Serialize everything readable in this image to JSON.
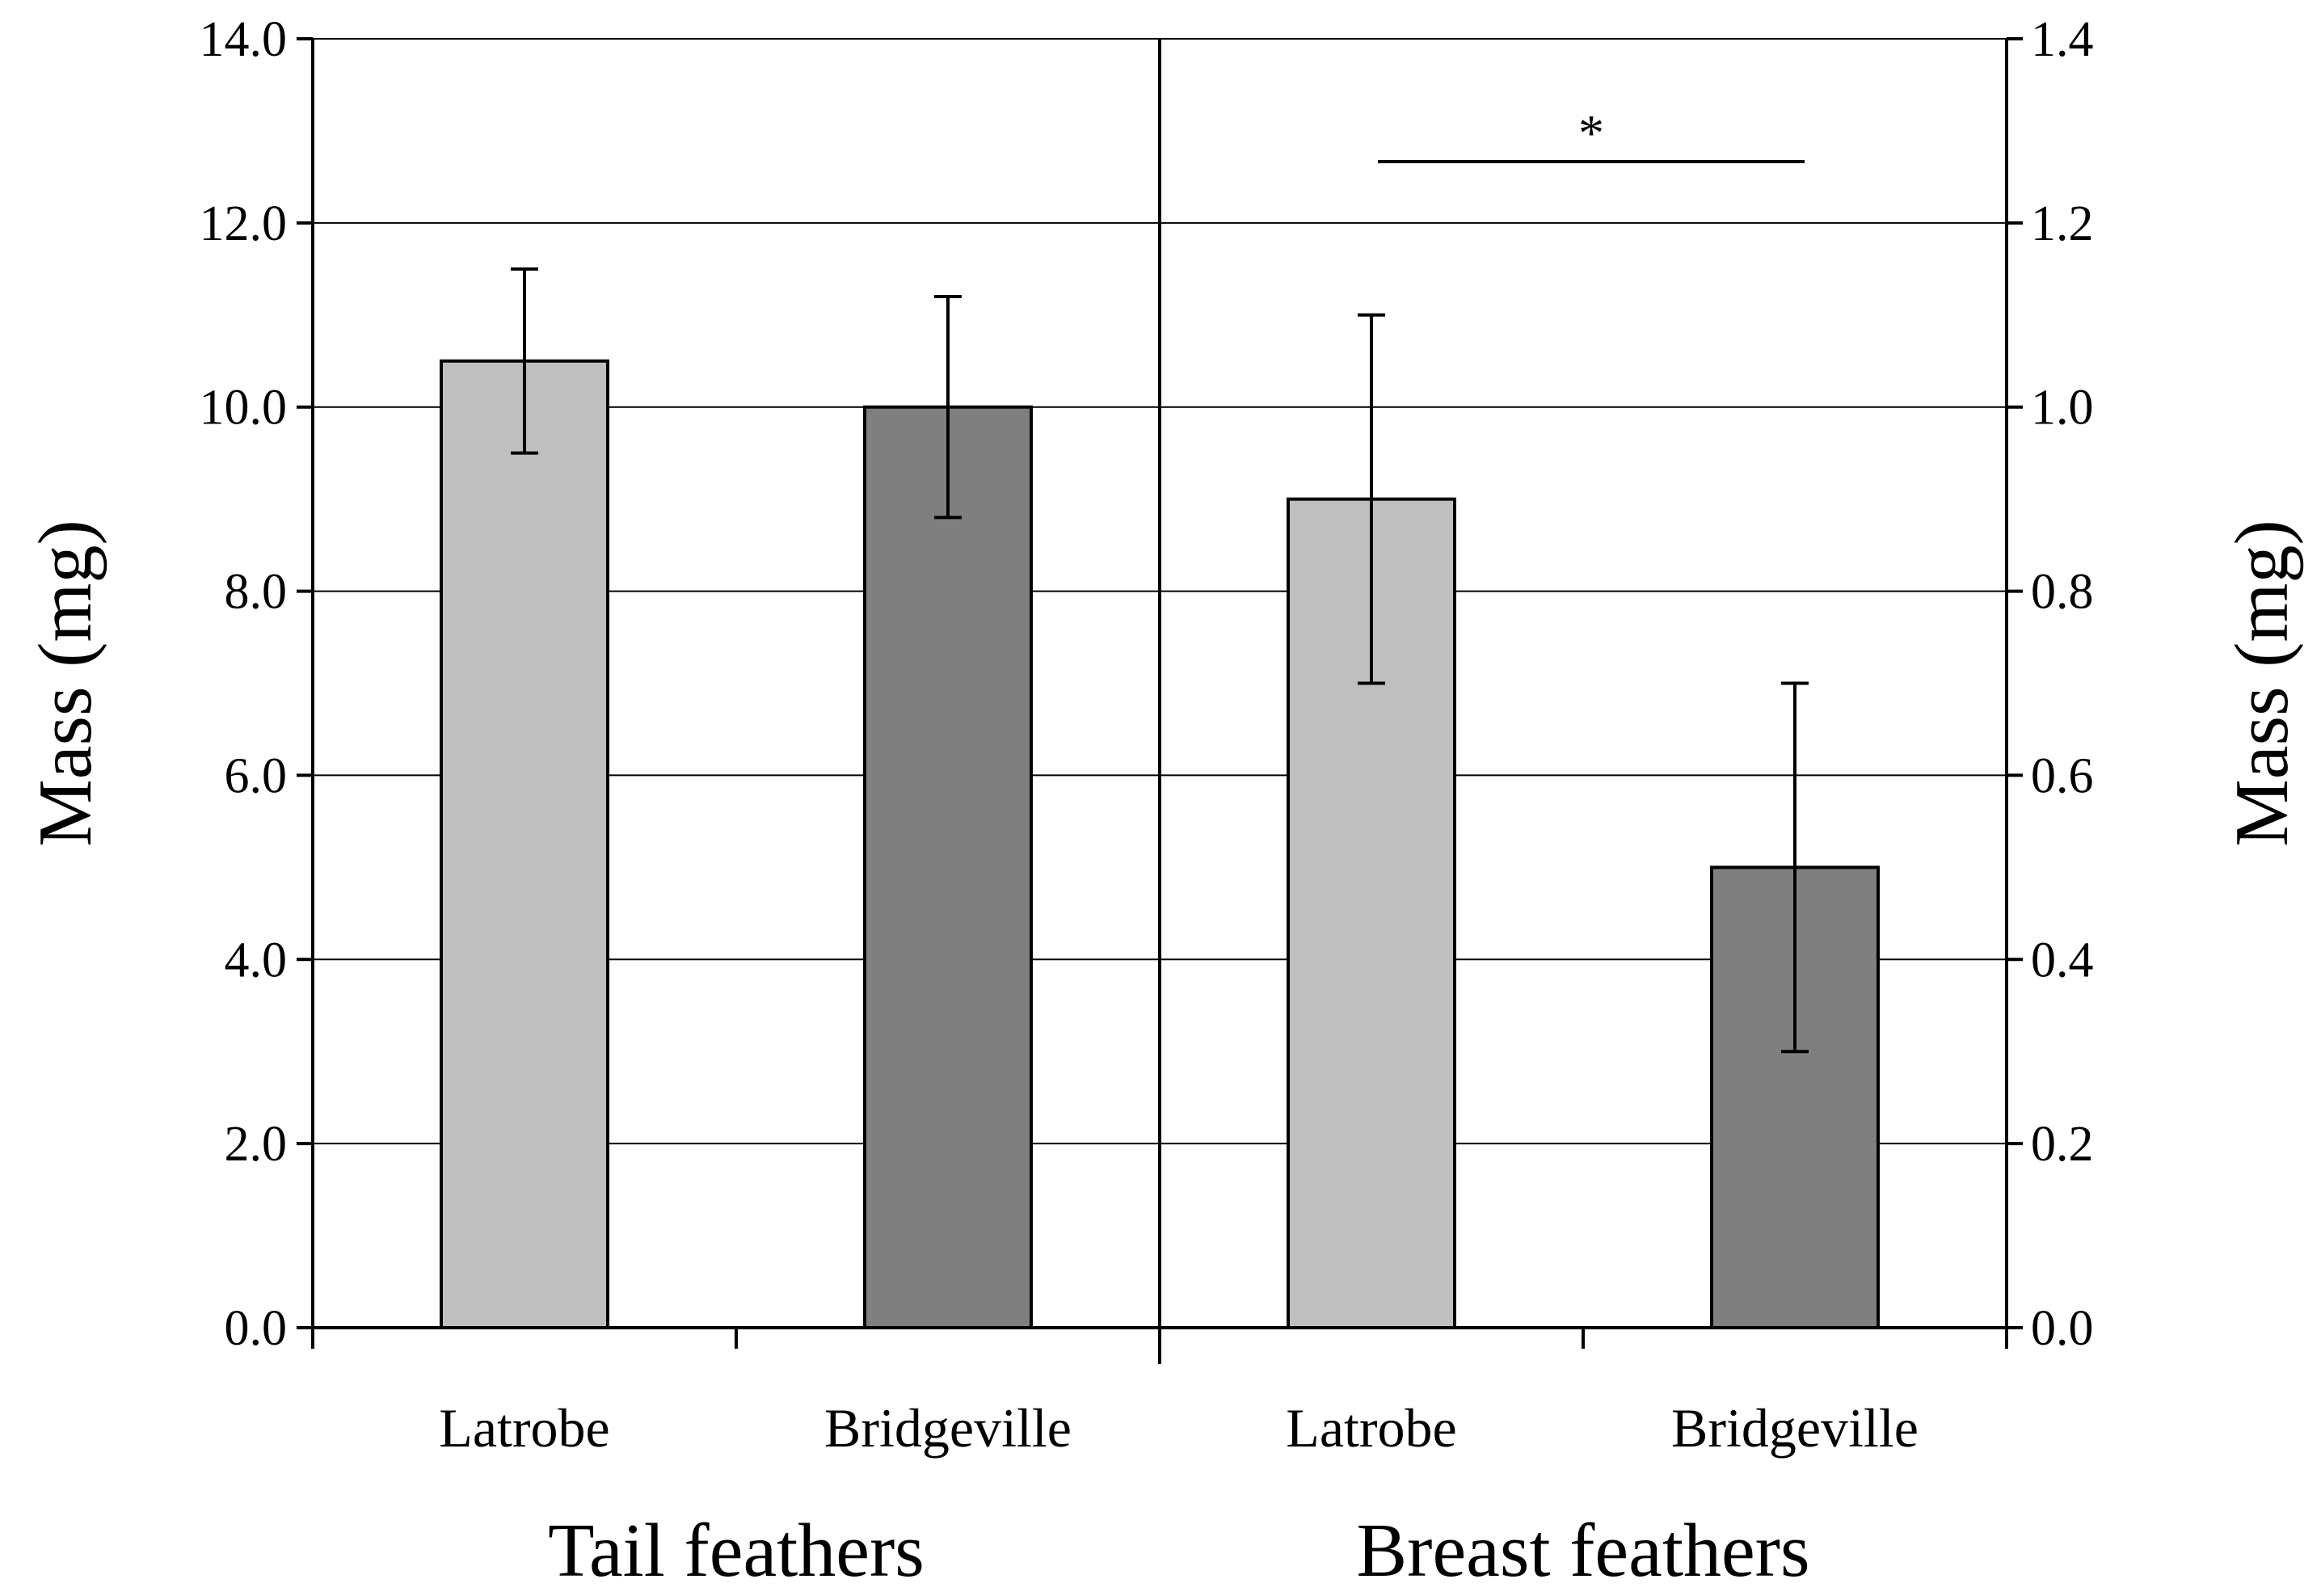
{
  "chart_data": {
    "type": "bar",
    "ylabel_left": "Mass (mg)",
    "ylabel_right": "Mass (mg)",
    "left_axis": {
      "ylim": [
        0,
        14
      ],
      "ticks": [
        "0.0",
        "2.0",
        "4.0",
        "6.0",
        "8.0",
        "10.0",
        "12.0",
        "14.0"
      ],
      "tick_values": [
        0,
        2,
        4,
        6,
        8,
        10,
        12,
        14
      ]
    },
    "right_axis": {
      "ylim": [
        0,
        1.4
      ],
      "ticks": [
        "0.0",
        "0.2",
        "0.4",
        "0.6",
        "0.8",
        "1.0",
        "1.2",
        "1.4"
      ],
      "tick_values": [
        0,
        0.2,
        0.4,
        0.6,
        0.8,
        1.0,
        1.2,
        1.4
      ]
    },
    "grid": true,
    "colors": {
      "Latrobe": "#bfbfbf",
      "Bridgeville": "#7f7f7f"
    },
    "groups": [
      {
        "name": "Tail feathers",
        "axis": "left",
        "bars": [
          {
            "category": "Latrobe",
            "value": 10.5,
            "error": 1.0
          },
          {
            "category": "Bridgeville",
            "value": 10.0,
            "error": 1.2
          }
        ]
      },
      {
        "name": "Breast feathers",
        "axis": "right",
        "bars": [
          {
            "category": "Latrobe",
            "value": 0.9,
            "error": 0.2
          },
          {
            "category": "Bridgeville",
            "value": 0.5,
            "error": 0.2
          }
        ]
      }
    ],
    "annotations": [
      {
        "type": "significance",
        "text": "*",
        "group": "Breast feathers",
        "between": [
          "Latrobe",
          "Bridgeville"
        ]
      }
    ]
  }
}
